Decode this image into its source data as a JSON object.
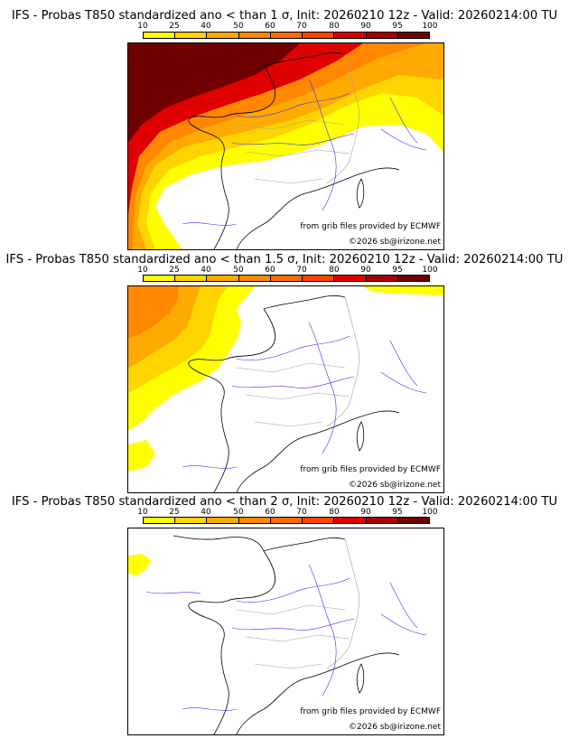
{
  "colors": {
    "levels": [
      "#ffff00",
      "#ffd400",
      "#ffaa00",
      "#ff8800",
      "#ff6a00",
      "#ff4400",
      "#e00000",
      "#a80000",
      "#700000"
    ],
    "coast": "#000000",
    "rivers": "#3030ff",
    "borders": "#a0a0a0"
  },
  "legend": {
    "labels": [
      "10",
      "25",
      "40",
      "50",
      "60",
      "70",
      "80",
      "90",
      "95",
      "100"
    ]
  },
  "credits": {
    "source": "from grib files provided by ECMWF",
    "copyright": "©2026 sb@irizone.net"
  },
  "panels": [
    {
      "title": "IFS - Probas T850  standardized ano < than 1 σ, Init: 20260210 12z - Valid: 20260214:00 TU",
      "threshold": "1 σ"
    },
    {
      "title": "IFS - Probas T850  standardized ano < than 1.5 σ, Init: 20260210 12z - Valid: 20260214:00 TU",
      "threshold": "1.5 σ"
    },
    {
      "title": "IFS - Probas T850  standardized ano < than 2 σ, Init: 20260210 12z - Valid: 20260214:00 TU",
      "threshold": "2 σ"
    }
  ]
}
